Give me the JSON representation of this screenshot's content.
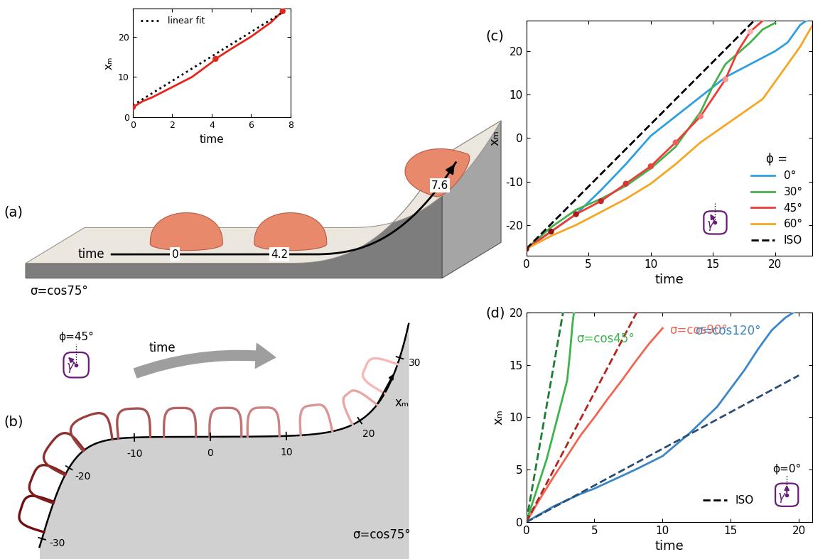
{
  "panel_labels": [
    "(a)",
    "(b)",
    "(c)",
    "(d)"
  ],
  "panel_a": {
    "sigma_label": "σ=cos75°",
    "time_label": "time",
    "time_marks": [
      0,
      4.2,
      7.6
    ]
  },
  "panel_b": {
    "sigma_label": "σ=cos75°",
    "time_label": "time",
    "axis_label": "xₘ",
    "axis_ticks": [
      -30,
      -20,
      -10,
      0,
      10,
      20,
      30
    ],
    "droplet_positions": [
      -27,
      -23,
      -19,
      -15,
      -10,
      -4,
      2,
      7,
      14,
      21,
      27
    ],
    "icon": {
      "angle": 45,
      "angle_label": "ϕ=45°",
      "gamma_label": "γ"
    }
  },
  "chart_data": [
    {
      "type": "line",
      "x_label": "time",
      "y_label": "xₘ",
      "xlim": [
        0,
        8
      ],
      "xticks": [
        0,
        2,
        4,
        6,
        8
      ],
      "ylim": [
        0,
        27
      ],
      "yticks": [
        0,
        10,
        20
      ],
      "legend": "upper left",
      "series": [
        {
          "x": [
            0,
            0.5,
            1,
            2,
            3,
            4,
            4.2,
            5,
            6,
            7,
            7.6
          ],
          "values": [
            2.5,
            4.0,
            5.0,
            7.5,
            10.0,
            13.6,
            14.5,
            17.0,
            20.0,
            23.5,
            26.3
          ],
          "color": "#e8231a",
          "line_style": "solid"
        },
        {
          "type": "scatter",
          "x": [
            0,
            4.2,
            7.6
          ],
          "values": [
            2.5,
            14.5,
            26.3
          ],
          "color": "#e8231a",
          "marker": "circle"
        },
        {
          "name": "linear fit",
          "x": [
            0,
            7.6
          ],
          "values": [
            3.0,
            26.0
          ],
          "color": "#000000",
          "line_style": "dotted"
        }
      ]
    },
    {
      "type": "line",
      "x_label": "time",
      "y_label": "xₘ",
      "xlim": [
        0,
        23
      ],
      "xticks": [
        0,
        5,
        10,
        15,
        20
      ],
      "ylim": [
        -27,
        27
      ],
      "yticks": [
        -20,
        -10,
        0,
        10,
        20
      ],
      "legend": "lower right",
      "legend_title": "ϕ =",
      "icon": {
        "gamma_label": "γ"
      },
      "series": [
        {
          "name": "0°",
          "x": [
            0,
            2,
            4,
            6,
            8,
            10,
            12,
            14,
            16,
            18,
            20,
            21,
            22,
            22.5
          ],
          "values": [
            -25.5,
            -21.5,
            -17.5,
            -12,
            -6,
            0.5,
            5,
            9.5,
            14,
            17,
            20,
            22,
            26,
            27
          ],
          "color": "#2e9fdf",
          "line_style": "solid"
        },
        {
          "name": "30°",
          "x": [
            0,
            2,
            4,
            6,
            8,
            10,
            12,
            14,
            15,
            16,
            18,
            19,
            20
          ],
          "values": [
            -25.5,
            -20.5,
            -16.5,
            -14,
            -11,
            -7,
            -2,
            6,
            12,
            17,
            22,
            25,
            26.5
          ],
          "color": "#44b24a",
          "line_style": "solid"
        },
        {
          "name": "45°",
          "x": [
            0,
            2,
            4,
            6,
            8,
            10,
            12,
            14,
            16,
            17,
            18,
            19
          ],
          "values": [
            -25.5,
            -21.5,
            -17.5,
            -14.5,
            -10.5,
            -6.5,
            -1,
            5,
            13.5,
            20,
            24.5,
            27
          ],
          "color": "#ef3b36",
          "line_style": "solid"
        },
        {
          "name": "60°",
          "x": [
            0,
            2,
            4,
            6,
            8,
            10,
            12,
            14,
            16,
            18,
            19,
            20,
            21,
            22,
            23
          ],
          "values": [
            -25.5,
            -22.5,
            -20,
            -17,
            -14,
            -10.5,
            -6,
            -1,
            3,
            7,
            9,
            13,
            17,
            21,
            26
          ],
          "color": "#f5a623",
          "line_style": "solid"
        },
        {
          "name": "ISO",
          "x": [
            0,
            18.3
          ],
          "values": [
            -25.5,
            27
          ],
          "color": "#000000",
          "line_style": "dashed"
        },
        {
          "type": "scatter",
          "x": [
            0,
            2,
            4,
            6,
            8,
            10,
            12,
            14,
            16,
            18
          ],
          "values": [
            -25.5,
            -21.5,
            -17.5,
            -14.5,
            -10.5,
            -6.5,
            -1,
            5,
            13.5,
            24.5
          ],
          "marker": "circle",
          "colors": [
            "#6e0f0f",
            "#8c1414",
            "#a81c1c",
            "#c0262a",
            "#d63336",
            "#e8423e",
            "#f0605a",
            "#f47e78",
            "#f59a94",
            "#f6b3ad"
          ]
        }
      ]
    },
    {
      "type": "line",
      "x_label": "time",
      "y_label": "xₘ",
      "xlim": [
        0,
        21
      ],
      "xticks": [
        0,
        5,
        10,
        15,
        20
      ],
      "ylim": [
        0,
        20
      ],
      "yticks": [
        0,
        5,
        10,
        15,
        20
      ],
      "legend": "lower right",
      "legend_entries": [
        {
          "name": "ISO",
          "color": "#000000",
          "line_style": "dashed"
        }
      ],
      "icon": {
        "angle": 0,
        "angle_label": "ϕ=0°",
        "gamma_label": "γ"
      },
      "series": [
        {
          "name": "σ=cos45°",
          "x": [
            0,
            0.5,
            1,
            1.5,
            2,
            2.5,
            3,
            3.2,
            3.4,
            3.5
          ],
          "values": [
            0,
            2,
            4,
            6,
            8.5,
            11,
            13.5,
            16,
            19,
            20
          ],
          "color": "#3cb44b",
          "line_style": "solid"
        },
        {
          "x": [
            0,
            2.7
          ],
          "values": [
            0,
            20
          ],
          "color": "#1e7b34",
          "line_style": "dashed"
        },
        {
          "name": "σ=cos90°",
          "x": [
            0,
            1,
            2,
            3,
            4,
            5,
            6,
            7,
            8,
            9,
            10
          ],
          "values": [
            0,
            2.2,
            4.3,
            6.3,
            8.3,
            10,
            11.8,
            13.5,
            15.3,
            17,
            18.5
          ],
          "color": "#f26552",
          "line_style": "solid"
        },
        {
          "x": [
            0,
            8.1
          ],
          "values": [
            0,
            20
          ],
          "color": "#b3261e",
          "line_style": "dashed"
        },
        {
          "name": "σ=cos120°",
          "x": [
            0,
            2,
            4,
            5,
            6,
            8,
            10,
            12,
            14,
            16,
            17,
            18,
            19,
            19.6
          ],
          "values": [
            0,
            1.5,
            2.7,
            3.2,
            3.8,
            5,
            6.3,
            8.5,
            11,
            14.5,
            16.5,
            18.3,
            19.5,
            20
          ],
          "color": "#3a86c8",
          "line_style": "solid"
        },
        {
          "x": [
            0,
            20
          ],
          "values": [
            0,
            14
          ],
          "color": "#2b4e74",
          "line_style": "dashed"
        }
      ]
    }
  ]
}
